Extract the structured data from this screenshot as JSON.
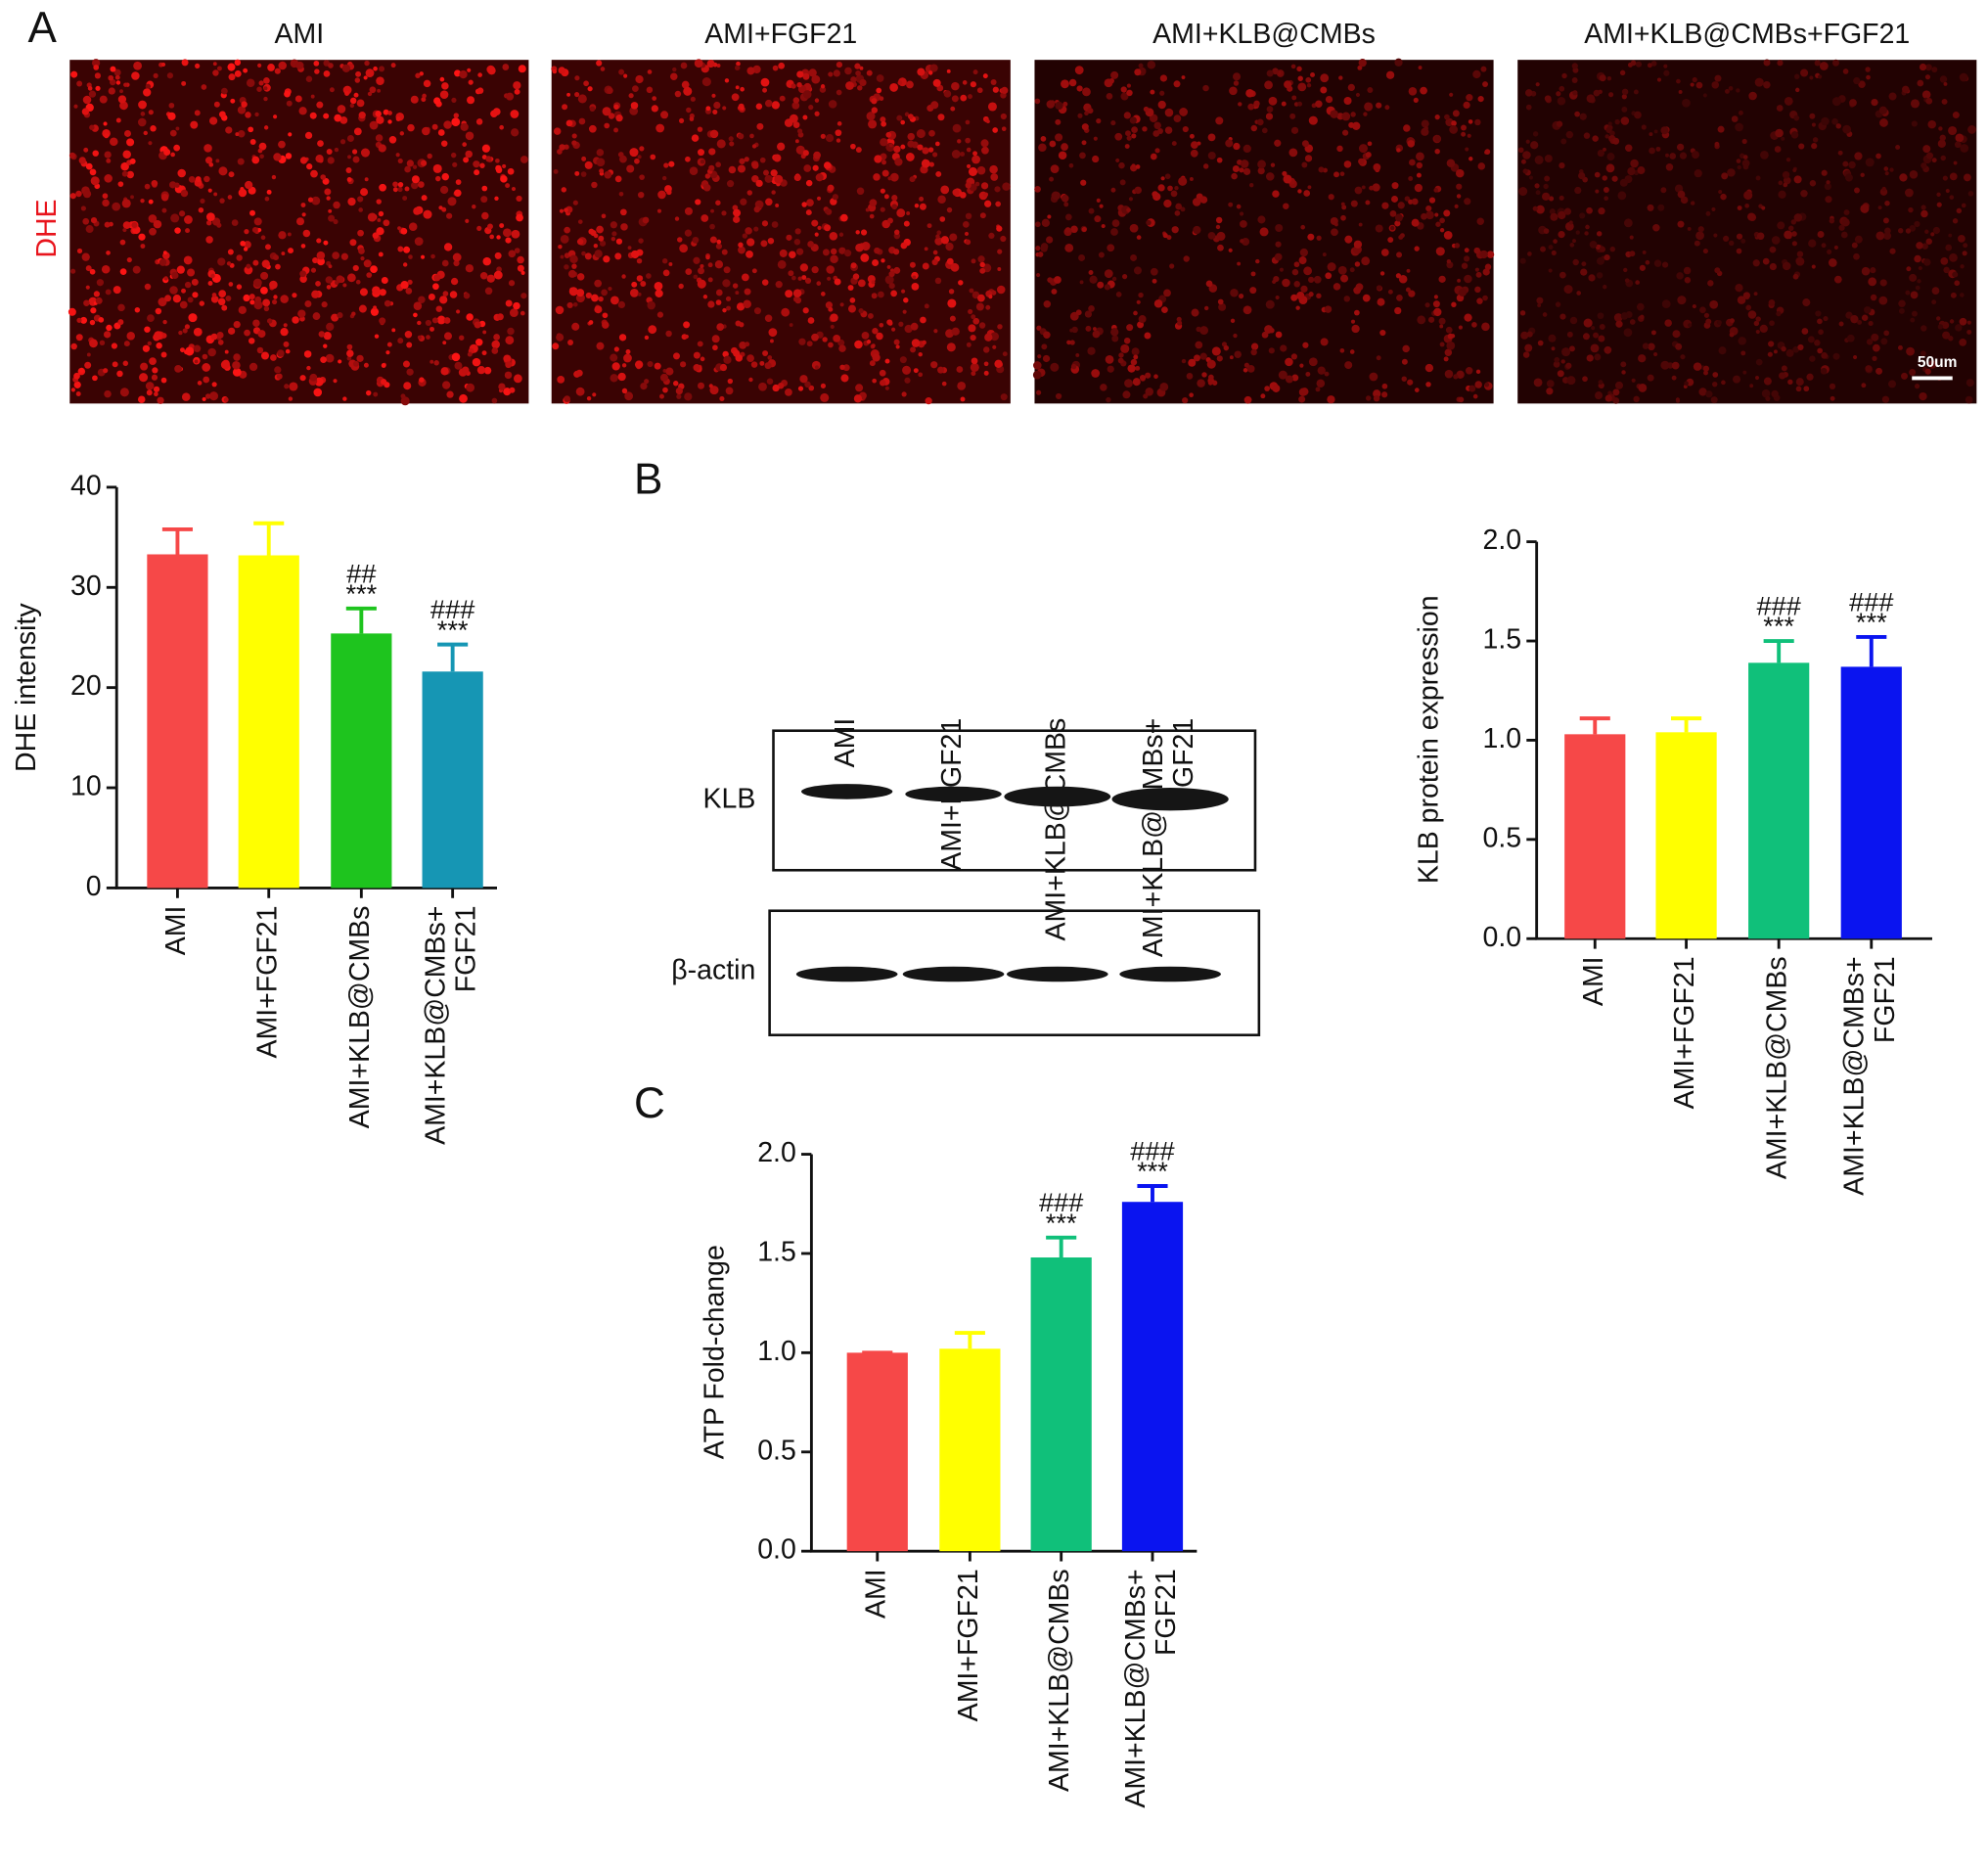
{
  "panel_labels": [
    "A",
    "B",
    "C"
  ],
  "images": {
    "titles": [
      "AMI",
      "AMI+FGF21",
      "AMI+KLB@CMBs",
      "AMI+KLB@CMBs+FGF21"
    ],
    "stain": "DHE",
    "scale_bar": "50um"
  },
  "blot": {
    "lanes": [
      "AMI",
      "AMI+FGF21",
      "AMI+KLB@CMBs",
      [
        "AMI+KLB@CMBs+",
        "FGF21"
      ]
    ],
    "rows": [
      "KLB",
      "β-actin"
    ]
  },
  "chart_data": [
    {
      "type": "bar",
      "y_label": "DHE intensity",
      "categories": [
        "AMI",
        "AMI+FGF21",
        "AMI+KLB@CMBs",
        [
          "AMI+KLB@CMBs+",
          "FGF21"
        ]
      ],
      "values": [
        33.3,
        33.2,
        25.4,
        21.6
      ],
      "errors": [
        2.5,
        3.2,
        2.5,
        2.7
      ],
      "colors": [
        "#f64848",
        "#ffff00",
        "#1ec41e",
        "#1696b4"
      ],
      "annotations": [
        null,
        null,
        [
          "##",
          "***"
        ],
        [
          "###",
          "***"
        ]
      ],
      "ylim": [
        0,
        40
      ],
      "yticks": [
        0,
        10,
        20,
        30,
        40
      ]
    },
    {
      "type": "bar",
      "y_label": "KLB protein expression",
      "categories": [
        "AMI",
        "AMI+FGF21",
        "AMI+KLB@CMBs",
        [
          "AMI+KLB@CMBs+",
          "FGF21"
        ]
      ],
      "values": [
        1.03,
        1.04,
        1.39,
        1.37
      ],
      "errors": [
        0.08,
        0.07,
        0.11,
        0.15
      ],
      "colors": [
        "#f64848",
        "#ffff00",
        "#10c07a",
        "#0a14f0"
      ],
      "annotations": [
        null,
        null,
        [
          "###",
          "***"
        ],
        [
          "###",
          "***"
        ]
      ],
      "ylim": [
        0,
        2
      ],
      "yticks": [
        {
          "value": 0,
          "label": "0.0"
        },
        0.5,
        {
          "value": 1,
          "label": "1.0"
        },
        1.5,
        {
          "value": 2,
          "label": "2.0"
        }
      ]
    },
    {
      "type": "bar",
      "y_label": "ATP Fold-change",
      "categories": [
        "AMI",
        "AMI+FGF21",
        "AMI+KLB@CMBs",
        [
          "AMI+KLB@CMBs+",
          "FGF21"
        ]
      ],
      "values": [
        1.0,
        1.02,
        1.48,
        1.76
      ],
      "errors": [
        0,
        0.08,
        0.1,
        0.08
      ],
      "colors": [
        "#f64848",
        "#ffff00",
        "#10c07a",
        "#0a14f0"
      ],
      "annotations": [
        null,
        null,
        [
          "###",
          "***"
        ],
        [
          "###",
          "***"
        ]
      ],
      "ylim": [
        0,
        2
      ],
      "yticks": [
        {
          "value": 0,
          "label": "0.0"
        },
        0.5,
        {
          "value": 1,
          "label": "1.0"
        },
        1.5,
        {
          "value": 2,
          "label": "2.0"
        }
      ]
    }
  ]
}
